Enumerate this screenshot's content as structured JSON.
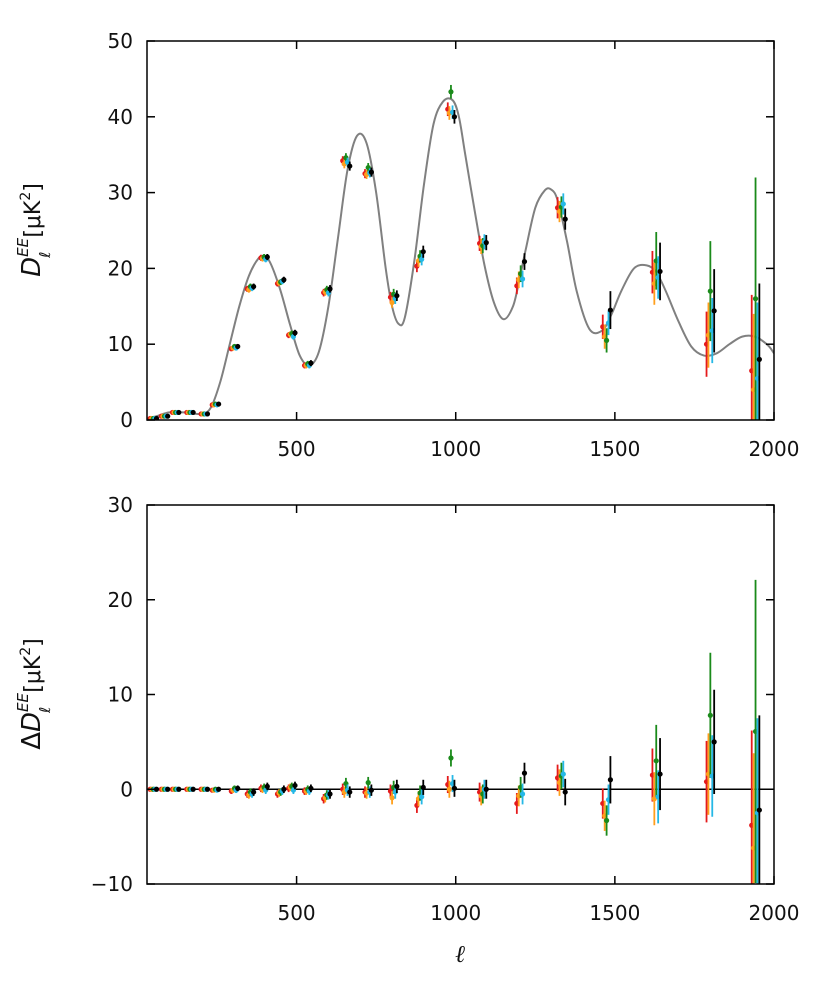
{
  "colors": {
    "model": "#808080",
    "red": "#e41a1c",
    "orange": "#ff9f1c",
    "green": "#1a8a1a",
    "cyan": "#25b8e6",
    "black": "#000000"
  },
  "labels": {
    "top_ylabel_main": "D",
    "top_ylabel_sup": "EE",
    "top_ylabel_sub": "ℓ",
    "top_ylabel_unit": "[μK",
    "top_ylabel_unit_sup": "2",
    "top_ylabel_unit_close": "]",
    "bottom_ylabel_delta": "Δ",
    "bottom_ylabel_main": "D",
    "bottom_ylabel_sup": "EE",
    "bottom_ylabel_sub": "ℓ",
    "bottom_ylabel_unit": "[μK",
    "bottom_ylabel_unit_sup": "2",
    "bottom_ylabel_unit_close": "]",
    "xlabel": "ℓ"
  },
  "chart_data": [
    {
      "type": "scatter",
      "panel": "top",
      "xlabel": "",
      "ylabel": "D_ℓ^EE [μK^2]",
      "xlim": [
        30,
        2000
      ],
      "ylim": [
        0,
        50
      ],
      "xticks": [
        500,
        1000,
        1500,
        2000
      ],
      "yticks": [
        0,
        10,
        20,
        30,
        40,
        50
      ],
      "model_curve": {
        "color": "#808080",
        "x": [
          30,
          60,
          100,
          150,
          200,
          230,
          260,
          290,
          320,
          350,
          380,
          400,
          420,
          450,
          480,
          510,
          540,
          570,
          600,
          630,
          660,
          690,
          720,
          750,
          780,
          800,
          820,
          840,
          870,
          900,
          930,
          960,
          990,
          1010,
          1030,
          1060,
          1090,
          1120,
          1150,
          1180,
          1200,
          1220,
          1250,
          1280,
          1300,
          1320,
          1350,
          1380,
          1420,
          1460,
          1490,
          1520,
          1560,
          1600,
          1630,
          1660,
          1700,
          1740,
          1780,
          1820,
          1860,
          1900,
          1940,
          1980,
          2000
        ],
        "y": [
          0.2,
          0.5,
          1.0,
          1.0,
          0.8,
          1.6,
          5.0,
          10.0,
          15.0,
          19.0,
          21.3,
          21.6,
          20.5,
          17.0,
          12.5,
          8.5,
          7.2,
          9.0,
          15.0,
          24.0,
          33.0,
          37.5,
          36.5,
          30.0,
          20.0,
          15.0,
          12.7,
          13.5,
          21.0,
          31.0,
          39.0,
          42.0,
          42.2,
          40.0,
          35.0,
          27.5,
          20.5,
          15.5,
          13.3,
          15.0,
          18.5,
          22.5,
          28.0,
          30.3,
          30.4,
          29.0,
          23.5,
          17.0,
          12.0,
          11.8,
          14.0,
          17.0,
          20.0,
          20.4,
          19.5,
          17.0,
          13.0,
          9.7,
          8.5,
          8.8,
          10.0,
          11.0,
          11.0,
          9.9,
          8.8
        ]
      },
      "series": [
        {
          "name": "",
          "color": "#e41a1c",
          "x": [
            40,
            75,
            110,
            155,
            200,
            235,
            295,
            345,
            388,
            440,
            475,
            525,
            585,
            645,
            715,
            795,
            878,
            975,
            1075,
            1192,
            1320,
            1462,
            1618,
            1788,
            1930
          ],
          "y": [
            0.2,
            0.5,
            1.0,
            1.0,
            0.8,
            2.0,
            9.4,
            17.3,
            21.4,
            18.0,
            11.2,
            7.2,
            16.8,
            34.2,
            32.5,
            16.2,
            20.3,
            41.0,
            23.3,
            17.7,
            28.0,
            12.3,
            19.5,
            10.0,
            6.5
          ],
          "err": [
            0.1,
            0.1,
            0.1,
            0.1,
            0.1,
            0.2,
            0.3,
            0.4,
            0.4,
            0.4,
            0.4,
            0.4,
            0.5,
            0.6,
            0.6,
            0.7,
            0.8,
            0.9,
            1.0,
            1.1,
            1.4,
            1.6,
            2.8,
            4.3,
            10.0
          ]
        },
        {
          "name": "",
          "color": "#ff9f1c",
          "x": [
            45,
            80,
            115,
            160,
            205,
            240,
            300,
            350,
            393,
            445,
            480,
            530,
            590,
            650,
            720,
            800,
            883,
            980,
            1080,
            1198,
            1326,
            1468,
            1624,
            1794,
            1936
          ],
          "y": [
            0.2,
            0.5,
            1.0,
            1.0,
            0.8,
            2.0,
            9.5,
            17.2,
            21.3,
            18.1,
            11.3,
            7.2,
            16.9,
            33.8,
            32.4,
            15.5,
            21.0,
            40.5,
            22.9,
            18.5,
            27.5,
            11.0,
            18.0,
            11.2,
            4.0
          ],
          "err": [
            0.1,
            0.1,
            0.1,
            0.1,
            0.1,
            0.2,
            0.3,
            0.4,
            0.4,
            0.4,
            0.4,
            0.4,
            0.5,
            0.6,
            0.6,
            0.7,
            0.8,
            0.9,
            1.0,
            1.1,
            1.4,
            1.6,
            2.8,
            4.3,
            10.0
          ]
        },
        {
          "name": "",
          "color": "#1a8a1a",
          "x": [
            50,
            85,
            120,
            165,
            210,
            245,
            305,
            355,
            398,
            450,
            485,
            535,
            595,
            655,
            725,
            805,
            888,
            985,
            1085,
            1204,
            1332,
            1474,
            1630,
            1800,
            1942
          ],
          "y": [
            0.2,
            0.5,
            1.0,
            1.0,
            0.8,
            2.1,
            9.7,
            17.6,
            21.5,
            18.2,
            11.4,
            7.4,
            17.2,
            34.6,
            33.3,
            16.6,
            21.6,
            43.3,
            23.0,
            19.3,
            28.1,
            10.5,
            21.0,
            17.0,
            16.0
          ],
          "err": [
            0.1,
            0.1,
            0.1,
            0.1,
            0.1,
            0.2,
            0.3,
            0.4,
            0.4,
            0.4,
            0.4,
            0.4,
            0.5,
            0.6,
            0.6,
            0.7,
            0.8,
            0.9,
            1.0,
            1.1,
            1.4,
            1.6,
            3.8,
            6.6,
            16.0
          ]
        },
        {
          "name": "",
          "color": "#25b8e6",
          "x": [
            55,
            90,
            125,
            170,
            215,
            250,
            310,
            360,
            403,
            455,
            490,
            540,
            600,
            660,
            730,
            810,
            893,
            990,
            1090,
            1210,
            1338,
            1480,
            1636,
            1806,
            1948
          ],
          "y": [
            0.2,
            0.5,
            1.0,
            1.0,
            0.8,
            2.0,
            9.5,
            17.4,
            21.2,
            18.3,
            11.0,
            7.2,
            16.8,
            34.0,
            32.6,
            16.0,
            21.2,
            40.6,
            23.5,
            18.6,
            28.5,
            12.8,
            18.8,
            11.8,
            5.5
          ],
          "err": [
            0.1,
            0.1,
            0.1,
            0.1,
            0.1,
            0.2,
            0.3,
            0.4,
            0.4,
            0.4,
            0.4,
            0.4,
            0.5,
            0.6,
            0.6,
            0.7,
            0.8,
            0.9,
            1.0,
            1.1,
            1.4,
            1.6,
            2.8,
            4.3,
            10.0
          ]
        },
        {
          "name": "",
          "color": "#000000",
          "x": [
            60,
            95,
            130,
            175,
            220,
            255,
            315,
            365,
            408,
            460,
            495,
            545,
            605,
            667,
            735,
            815,
            898,
            996,
            1096,
            1216,
            1344,
            1486,
            1642,
            1812,
            1954
          ],
          "y": [
            0.2,
            0.5,
            1.0,
            1.0,
            0.8,
            2.1,
            9.7,
            17.6,
            21.5,
            18.5,
            11.5,
            7.5,
            17.3,
            33.5,
            32.7,
            16.4,
            22.2,
            40.0,
            23.4,
            20.9,
            26.5,
            14.5,
            19.6,
            14.4,
            8.0
          ],
          "err": [
            0.1,
            0.1,
            0.1,
            0.1,
            0.1,
            0.2,
            0.3,
            0.4,
            0.4,
            0.4,
            0.4,
            0.4,
            0.5,
            0.6,
            0.6,
            0.7,
            0.8,
            0.9,
            1.0,
            1.1,
            1.4,
            2.5,
            3.8,
            5.5,
            10.0
          ]
        }
      ]
    },
    {
      "type": "scatter",
      "panel": "bottom",
      "xlabel": "ℓ",
      "ylabel": "ΔD_ℓ^EE [μK^2]",
      "xlim": [
        30,
        2000
      ],
      "ylim": [
        -10,
        30
      ],
      "xticks": [
        500,
        1000,
        1500,
        2000
      ],
      "yticks": [
        -10,
        0,
        10,
        20,
        30
      ],
      "zero_line": true,
      "series": [
        {
          "name": "",
          "color": "#e41a1c",
          "x": [
            40,
            75,
            110,
            155,
            200,
            235,
            295,
            345,
            388,
            440,
            475,
            525,
            585,
            645,
            715,
            795,
            878,
            975,
            1075,
            1192,
            1320,
            1462,
            1618,
            1788,
            1930
          ],
          "y": [
            0.0,
            0.0,
            0.0,
            0.0,
            0.0,
            -0.1,
            -0.2,
            -0.5,
            0.1,
            -0.5,
            0.1,
            -0.2,
            -1.0,
            0.0,
            -0.3,
            -0.2,
            -1.7,
            0.5,
            -0.3,
            -1.5,
            1.2,
            -1.5,
            1.5,
            0.8,
            -3.8
          ],
          "err": [
            0.1,
            0.1,
            0.1,
            0.1,
            0.1,
            0.2,
            0.3,
            0.4,
            0.4,
            0.4,
            0.4,
            0.4,
            0.5,
            0.6,
            0.6,
            0.7,
            0.8,
            0.9,
            1.0,
            1.1,
            1.4,
            1.6,
            2.8,
            4.3,
            10.0
          ]
        },
        {
          "name": "",
          "color": "#ff9f1c",
          "x": [
            45,
            80,
            115,
            160,
            205,
            240,
            300,
            350,
            393,
            445,
            480,
            530,
            590,
            650,
            720,
            800,
            883,
            980,
            1080,
            1198,
            1326,
            1468,
            1624,
            1794,
            1936
          ],
          "y": [
            0.0,
            0.0,
            0.0,
            0.0,
            0.0,
            -0.1,
            -0.1,
            -0.6,
            0.0,
            -0.4,
            0.2,
            -0.2,
            -0.9,
            -0.3,
            -0.4,
            -0.9,
            -1.0,
            0.0,
            -0.7,
            -0.7,
            0.7,
            -2.8,
            -1.0,
            1.6,
            -6.2
          ],
          "err": [
            0.1,
            0.1,
            0.1,
            0.1,
            0.1,
            0.2,
            0.3,
            0.4,
            0.4,
            0.4,
            0.4,
            0.4,
            0.5,
            0.6,
            0.6,
            0.7,
            0.8,
            0.9,
            1.0,
            1.1,
            1.4,
            1.6,
            2.8,
            4.3,
            10.0
          ]
        },
        {
          "name": "",
          "color": "#1a8a1a",
          "x": [
            50,
            85,
            120,
            165,
            210,
            245,
            305,
            355,
            398,
            450,
            485,
            535,
            595,
            655,
            725,
            805,
            888,
            985,
            1085,
            1204,
            1332,
            1474,
            1630,
            1800,
            1942
          ],
          "y": [
            0.0,
            0.0,
            0.0,
            0.0,
            0.0,
            0.0,
            0.1,
            -0.3,
            0.2,
            -0.3,
            0.3,
            0.0,
            -0.6,
            0.6,
            0.7,
            0.2,
            -0.4,
            3.3,
            -0.5,
            0.2,
            1.4,
            -3.3,
            3.0,
            7.8,
            6.1
          ],
          "err": [
            0.1,
            0.1,
            0.1,
            0.1,
            0.1,
            0.2,
            0.3,
            0.4,
            0.4,
            0.4,
            0.4,
            0.4,
            0.5,
            0.6,
            0.6,
            0.7,
            0.8,
            0.9,
            1.0,
            1.1,
            1.4,
            1.6,
            3.8,
            6.6,
            16.0
          ]
        },
        {
          "name": "",
          "color": "#25b8e6",
          "x": [
            55,
            90,
            125,
            170,
            215,
            250,
            310,
            360,
            403,
            455,
            490,
            540,
            600,
            660,
            730,
            810,
            893,
            990,
            1090,
            1210,
            1338,
            1480,
            1636,
            1806,
            1948
          ],
          "y": [
            0.0,
            0.0,
            0.0,
            0.0,
            0.0,
            -0.1,
            -0.1,
            -0.5,
            -0.1,
            -0.2,
            -0.1,
            -0.2,
            -0.6,
            -0.1,
            -0.3,
            -0.3,
            -0.8,
            0.6,
            0.0,
            -0.5,
            1.6,
            -1.1,
            -0.8,
            1.4,
            -2.5
          ],
          "err": [
            0.1,
            0.1,
            0.1,
            0.1,
            0.1,
            0.2,
            0.3,
            0.4,
            0.4,
            0.4,
            0.4,
            0.4,
            0.5,
            0.6,
            0.6,
            0.7,
            0.8,
            0.9,
            1.0,
            1.1,
            1.4,
            1.6,
            2.8,
            4.3,
            10.0
          ]
        },
        {
          "name": "",
          "color": "#000000",
          "x": [
            60,
            95,
            130,
            175,
            220,
            255,
            315,
            365,
            408,
            460,
            495,
            545,
            605,
            667,
            735,
            815,
            898,
            996,
            1096,
            1216,
            1344,
            1486,
            1642,
            1812,
            1954
          ],
          "y": [
            0.0,
            0.0,
            0.0,
            0.0,
            0.0,
            0.0,
            0.1,
            -0.3,
            0.3,
            0.0,
            0.4,
            0.1,
            -0.5,
            -0.3,
            -0.1,
            0.3,
            0.2,
            0.1,
            0.0,
            1.7,
            -0.3,
            1.0,
            1.6,
            5.0,
            -2.2
          ],
          "err": [
            0.1,
            0.1,
            0.1,
            0.1,
            0.1,
            0.2,
            0.3,
            0.4,
            0.4,
            0.4,
            0.4,
            0.4,
            0.5,
            0.6,
            0.6,
            0.7,
            0.8,
            0.9,
            1.0,
            1.1,
            1.4,
            2.5,
            3.8,
            5.5,
            10.0
          ]
        }
      ]
    }
  ]
}
